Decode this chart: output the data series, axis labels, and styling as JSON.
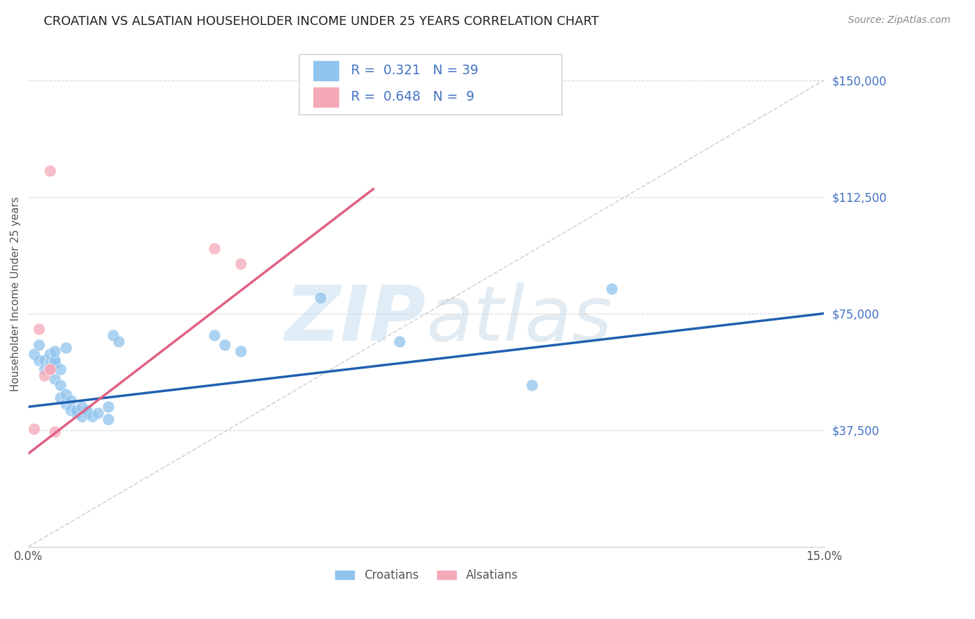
{
  "title": "CROATIAN VS ALSATIAN HOUSEHOLDER INCOME UNDER 25 YEARS CORRELATION CHART",
  "source": "Source: ZipAtlas.com",
  "ylabel": "Householder Income Under 25 years",
  "xlim": [
    0.0,
    0.15
  ],
  "ylim": [
    0,
    162500
  ],
  "yticks": [
    37500,
    75000,
    112500,
    150000
  ],
  "ytick_labels": [
    "$37,500",
    "$75,000",
    "$112,500",
    "$150,000"
  ],
  "xtick_labels": [
    "0.0%",
    "15.0%"
  ],
  "background_color": "#ffffff",
  "grid_color": "#d8d8d8",
  "croatian_color": "#90c4ed",
  "alsatian_color": "#f5a8b8",
  "croatian_line_color": "#2060b0",
  "alsatian_line_color": "#e06080",
  "diagonal_color": "#c8c8c8",
  "legend_r_croatian": "0.321",
  "legend_n_croatian": "39",
  "legend_r_alsatian": "0.648",
  "legend_n_alsatian": "9",
  "blue_line_x0": 0.0,
  "blue_line_y0": 45000,
  "blue_line_x1": 0.15,
  "blue_line_y1": 75000,
  "pink_line_x0": 0.0,
  "pink_line_y0": 30000,
  "pink_line_x1": 0.065,
  "pink_line_y1": 115000,
  "croatian_points_x": [
    0.001,
    0.002,
    0.002,
    0.003,
    0.003,
    0.004,
    0.004,
    0.004,
    0.005,
    0.005,
    0.005,
    0.005,
    0.006,
    0.006,
    0.006,
    0.007,
    0.007,
    0.007,
    0.008,
    0.008,
    0.009,
    0.009,
    0.01,
    0.01,
    0.011,
    0.011,
    0.012,
    0.013,
    0.015,
    0.015,
    0.016,
    0.017,
    0.035,
    0.037,
    0.04,
    0.055,
    0.07,
    0.095,
    0.11
  ],
  "croatian_points_y": [
    62000,
    60000,
    65000,
    60000,
    57000,
    59000,
    62000,
    58000,
    59000,
    54000,
    60000,
    63000,
    52000,
    48000,
    57000,
    46000,
    49000,
    64000,
    47000,
    44000,
    43000,
    44000,
    42000,
    45000,
    43000,
    44000,
    42000,
    43000,
    41000,
    45000,
    68000,
    66000,
    68000,
    65000,
    63000,
    80000,
    66000,
    52000,
    83000
  ],
  "alsatian_points_x": [
    0.001,
    0.002,
    0.003,
    0.004,
    0.004,
    0.004,
    0.005,
    0.035,
    0.04
  ],
  "alsatian_points_y": [
    38000,
    70000,
    55000,
    57000,
    57000,
    121000,
    37000,
    96000,
    91000
  ]
}
